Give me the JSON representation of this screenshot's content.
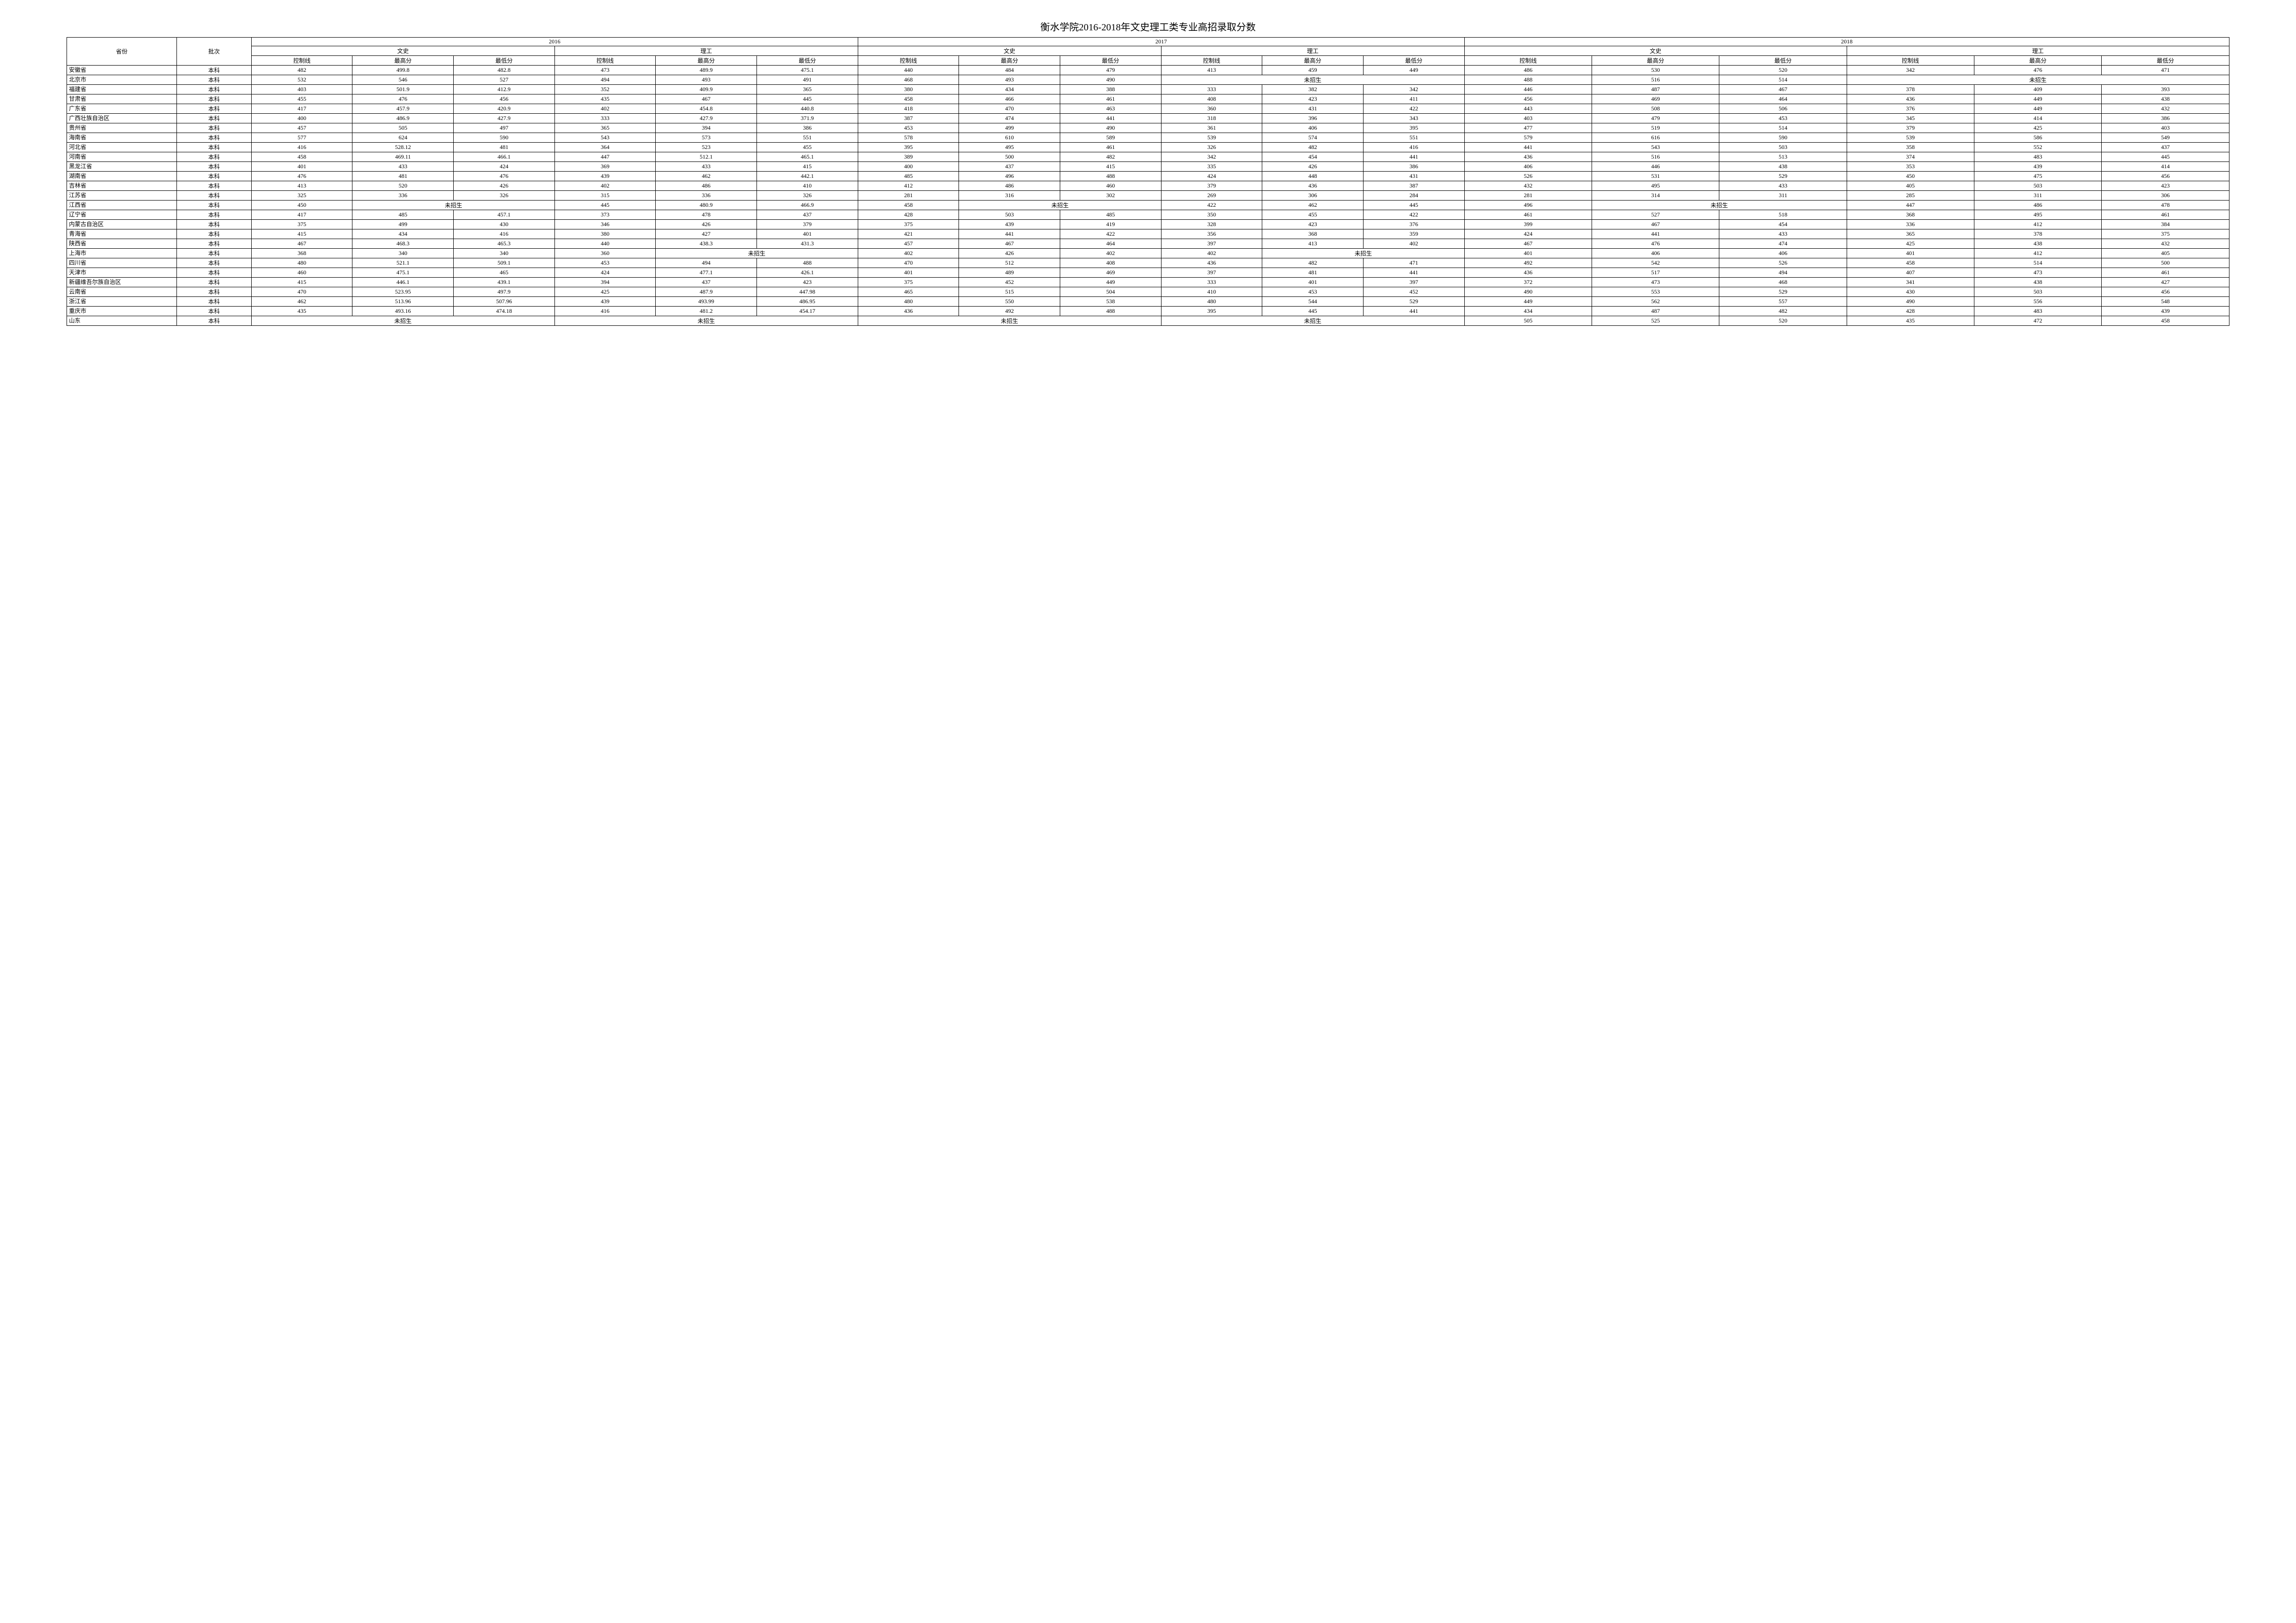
{
  "title": "衡水学院2016-2018年文史理工类专业高招录取分数",
  "headers": {
    "province": "省份",
    "level": "批次",
    "y2016": "2016",
    "y2017": "2017",
    "y2018": "2018",
    "wenshi": "文史",
    "ligong": "理工",
    "ctrl": "控制线",
    "high": "最高分",
    "low": "最低分"
  },
  "not_enroll": "未招生",
  "level_val": "本科",
  "rows": [
    {
      "prov": "安徽省",
      "c": [
        "482",
        "499.8",
        "482.8",
        "473",
        "489.9",
        "475.1",
        "440",
        "484",
        "479",
        "413",
        "459",
        "449",
        "486",
        "530",
        "520",
        "342",
        "476",
        "471"
      ]
    },
    {
      "prov": "北京市",
      "c": [
        "532",
        "546",
        "527",
        "494",
        "493",
        "491",
        "468",
        "493",
        "490",
        {
          "span": 3,
          "v": "未招生"
        },
        "488",
        "516",
        "514",
        {
          "span": 3,
          "v": "未招生"
        }
      ]
    },
    {
      "prov": "福建省",
      "c": [
        "403",
        "501.9",
        "412.9",
        "352",
        "409.9",
        "365",
        "380",
        "434",
        "388",
        "333",
        "382",
        "342",
        "446",
        "487",
        "467",
        "378",
        "409",
        "393"
      ]
    },
    {
      "prov": "甘肃省",
      "c": [
        "455",
        "476",
        "456",
        "435",
        "467",
        "445",
        "458",
        "466",
        "461",
        "408",
        "423",
        "411",
        "456",
        "469",
        "464",
        "436",
        "449",
        "438"
      ]
    },
    {
      "prov": "广东省",
      "c": [
        "417",
        "457.9",
        "420.9",
        "402",
        "454.8",
        "440.8",
        "418",
        "470",
        "463",
        "360",
        "431",
        "422",
        "443",
        "508",
        "506",
        "376",
        "449",
        "432"
      ]
    },
    {
      "prov": "广西壮族自治区",
      "c": [
        "400",
        "486.9",
        "427.9",
        "333",
        "427.9",
        "371.9",
        "387",
        "474",
        "441",
        "318",
        "396",
        "343",
        "403",
        "479",
        "453",
        "345",
        "414",
        "386"
      ]
    },
    {
      "prov": "贵州省",
      "c": [
        "457",
        "505",
        "497",
        "365",
        "394",
        "386",
        "453",
        "499",
        "490",
        "361",
        "406",
        "395",
        "477",
        "519",
        "514",
        "379",
        "425",
        "403"
      ]
    },
    {
      "prov": "海南省",
      "c": [
        "577",
        "624",
        "590",
        "543",
        "573",
        "551",
        "578",
        "610",
        "589",
        "539",
        "574",
        "551",
        "579",
        "616",
        "590",
        "539",
        "586",
        "549"
      ]
    },
    {
      "prov": "河北省",
      "c": [
        "416",
        "528.12",
        "481",
        "364",
        "523",
        "455",
        "395",
        "495",
        "461",
        "326",
        "482",
        "416",
        "441",
        "543",
        "503",
        "358",
        "552",
        "437"
      ]
    },
    {
      "prov": "河南省",
      "c": [
        "458",
        "469.11",
        "466.1",
        "447",
        "512.1",
        "465.1",
        "389",
        "500",
        "482",
        "342",
        "454",
        "441",
        "436",
        "516",
        "513",
        "374",
        "483",
        "445"
      ]
    },
    {
      "prov": "黑龙江省",
      "c": [
        "401",
        "433",
        "424",
        "369",
        "433",
        "415",
        "400",
        "437",
        "415",
        "335",
        "426",
        "386",
        "406",
        "446",
        "438",
        "353",
        "439",
        "414"
      ]
    },
    {
      "prov": "湖南省",
      "c": [
        "476",
        "481",
        "476",
        "439",
        "462",
        "442.1",
        "485",
        "496",
        "488",
        "424",
        "448",
        "431",
        "526",
        "531",
        "529",
        "450",
        "475",
        "456"
      ]
    },
    {
      "prov": "吉林省",
      "c": [
        "413",
        "520",
        "426",
        "402",
        "486",
        "410",
        "412",
        "486",
        "460",
        "379",
        "436",
        "387",
        "432",
        "495",
        "433",
        "405",
        "503",
        "423"
      ]
    },
    {
      "prov": "江苏省",
      "c": [
        "325",
        "336",
        "326",
        "315",
        "336",
        "326",
        "281",
        "316",
        "302",
        "269",
        "306",
        "284",
        "281",
        "314",
        "311",
        "285",
        "311",
        "306"
      ]
    },
    {
      "prov": "江西省",
      "c": [
        "450",
        {
          "span": 2,
          "v": "未招生"
        },
        "445",
        "480.9",
        "466.9",
        "458",
        {
          "span": 2,
          "v": "未招生"
        },
        "422",
        "462",
        "445",
        "496",
        {
          "span": 2,
          "v": "未招生"
        },
        "447",
        "486",
        "478"
      ]
    },
    {
      "prov": "辽宁省",
      "c": [
        "417",
        "485",
        "457.1",
        "373",
        "478",
        "437",
        "428",
        "503",
        "485",
        "350",
        "455",
        "422",
        "461",
        "527",
        "518",
        "368",
        "495",
        "461"
      ]
    },
    {
      "prov": "内蒙古自治区",
      "c": [
        "375",
        "499",
        "430",
        "346",
        "426",
        "379",
        "375",
        "439",
        "419",
        "328",
        "423",
        "376",
        "399",
        "467",
        "454",
        "336",
        "412",
        "384"
      ]
    },
    {
      "prov": "青海省",
      "c": [
        "415",
        "434",
        "416",
        "380",
        "427",
        "401",
        "421",
        "441",
        "422",
        "356",
        "368",
        "359",
        "424",
        "441",
        "433",
        "365",
        "378",
        "375"
      ]
    },
    {
      "prov": "陕西省",
      "c": [
        "467",
        "468.3",
        "465.3",
        "440",
        "438.3",
        "431.3",
        "457",
        "467",
        "464",
        "397",
        "413",
        "402",
        "467",
        "476",
        "474",
        "425",
        "438",
        "432"
      ]
    },
    {
      "prov": "上海市",
      "c": [
        "368",
        "340",
        "340",
        "360",
        {
          "span": 2,
          "v": "未招生"
        },
        "402",
        "426",
        "402",
        "402",
        {
          "span": 2,
          "v": "未招生"
        },
        "401",
        "406",
        "406",
        "401",
        "412",
        "405"
      ]
    },
    {
      "prov": "四川省",
      "c": [
        "480",
        "521.1",
        "509.1",
        "453",
        "494",
        "488",
        "470",
        "512",
        "408",
        "436",
        "482",
        "471",
        "492",
        "542",
        "526",
        "458",
        "514",
        "500"
      ]
    },
    {
      "prov": "天津市",
      "c": [
        "460",
        "475.1",
        "465",
        "424",
        "477.1",
        "426.1",
        "401",
        "489",
        "469",
        "397",
        "481",
        "441",
        "436",
        "517",
        "494",
        "407",
        "473",
        "461"
      ]
    },
    {
      "prov": "新疆维吾尔族自治区",
      "c": [
        "415",
        "446.1",
        "439.1",
        "394",
        "437",
        "423",
        "375",
        "452",
        "449",
        "333",
        "401",
        "397",
        "372",
        "473",
        "468",
        "341",
        "438",
        "427"
      ]
    },
    {
      "prov": "云南省",
      "c": [
        "470",
        "523.95",
        "497.9",
        "425",
        "487.9",
        "447.98",
        "465",
        "515",
        "504",
        "410",
        "453",
        "452",
        "490",
        "553",
        "529",
        "430",
        "503",
        "456"
      ]
    },
    {
      "prov": "浙江省",
      "c": [
        "462",
        "513.96",
        "507.96",
        "439",
        "493.99",
        "486.95",
        "480",
        "550",
        "538",
        "480",
        "544",
        "529",
        "449",
        "562",
        "557",
        "490",
        "556",
        "548"
      ]
    },
    {
      "prov": "重庆市",
      "c": [
        "435",
        "493.16",
        "474.18",
        "416",
        "481.2",
        "454.17",
        "436",
        "492",
        "488",
        "395",
        "445",
        "441",
        "434",
        "487",
        "482",
        "428",
        "483",
        "439"
      ]
    },
    {
      "prov": "山东",
      "c": [
        {
          "span": 3,
          "v": "未招生"
        },
        {
          "span": 3,
          "v": "未招生"
        },
        {
          "span": 3,
          "v": "未招生"
        },
        {
          "span": 3,
          "v": "未招生"
        },
        "505",
        "525",
        "520",
        "435",
        "472",
        "458"
      ]
    }
  ]
}
